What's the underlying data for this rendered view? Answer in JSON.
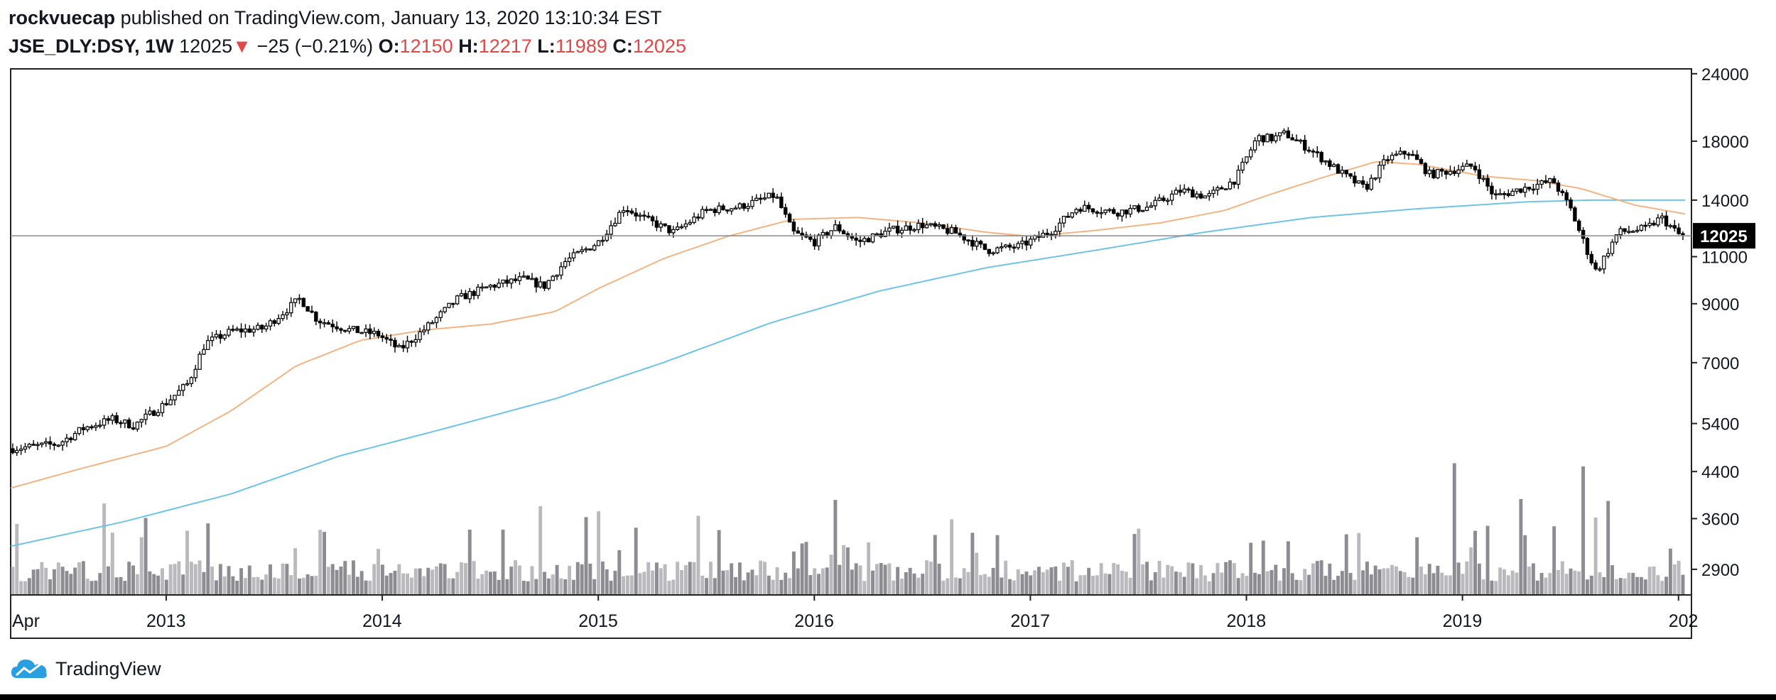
{
  "header": {
    "author": "rockvuecap",
    "published_text": "published on TradingView.com, January 13, 2020 13:10:34 EST",
    "symbol": "JSE_DLY:DSY, 1W",
    "last": "12025",
    "arrow": "▼",
    "change": "−25 (−0.21%)",
    "o_label": "O:",
    "o_value": "12150",
    "h_label": "H:",
    "h_value": "12217",
    "l_label": "L:",
    "l_value": "11989",
    "c_label": "C:",
    "c_value": "12025"
  },
  "logo": {
    "text": "TradingView",
    "icon": "tradingview-cloud-icon"
  },
  "colors": {
    "candle": "#000000",
    "ma_slow": "#6ec3e6",
    "ma_fast": "#f2b483",
    "volume_dark": "#8c8c92",
    "volume_light": "#b9b9be",
    "price_line": "#8a8a8a",
    "last_label_bg": "#000000",
    "down": "#e04848"
  },
  "chart_data": {
    "type": "candlestick",
    "timeframe": "1W",
    "y_scale": "log",
    "ylim": [
      2600,
      24500
    ],
    "x_range": [
      "2012-04",
      "2020-01"
    ],
    "y_ticks": [
      2900,
      3600,
      4400,
      5400,
      7000,
      9000,
      11000,
      14000,
      18000,
      24000
    ],
    "x_ticks": [
      "Apr",
      "2013",
      "2014",
      "2015",
      "2016",
      "2017",
      "2018",
      "2019",
      "202"
    ],
    "last_price_label": "12025",
    "price_anchors": [
      [
        2012.28,
        4850
      ],
      [
        2012.5,
        4950
      ],
      [
        2012.62,
        5300
      ],
      [
        2012.75,
        5500
      ],
      [
        2012.85,
        5350
      ],
      [
        2013.0,
        5900
      ],
      [
        2013.1,
        6400
      ],
      [
        2013.18,
        7600
      ],
      [
        2013.3,
        8000
      ],
      [
        2013.45,
        8100
      ],
      [
        2013.62,
        9200
      ],
      [
        2013.7,
        8400
      ],
      [
        2013.85,
        8050
      ],
      [
        2013.98,
        7900
      ],
      [
        2014.08,
        7400
      ],
      [
        2014.2,
        8100
      ],
      [
        2014.35,
        9200
      ],
      [
        2014.5,
        9700
      ],
      [
        2014.65,
        10000
      ],
      [
        2014.75,
        9700
      ],
      [
        2014.85,
        10800
      ],
      [
        2015.0,
        11700
      ],
      [
        2015.12,
        13600
      ],
      [
        2015.2,
        13000
      ],
      [
        2015.35,
        12200
      ],
      [
        2015.5,
        13400
      ],
      [
        2015.65,
        13600
      ],
      [
        2015.82,
        14300
      ],
      [
        2015.9,
        12200
      ],
      [
        2016.0,
        11700
      ],
      [
        2016.1,
        12500
      ],
      [
        2016.2,
        11700
      ],
      [
        2016.35,
        12300
      ],
      [
        2016.5,
        12600
      ],
      [
        2016.65,
        12200
      ],
      [
        2016.8,
        11300
      ],
      [
        2016.95,
        11500
      ],
      [
        2017.1,
        12300
      ],
      [
        2017.22,
        13600
      ],
      [
        2017.4,
        13300
      ],
      [
        2017.55,
        13600
      ],
      [
        2017.7,
        14600
      ],
      [
        2017.82,
        14200
      ],
      [
        2017.95,
        15300
      ],
      [
        2018.05,
        18300
      ],
      [
        2018.12,
        18200
      ],
      [
        2018.18,
        18600
      ],
      [
        2018.3,
        17300
      ],
      [
        2018.45,
        15600
      ],
      [
        2018.55,
        14700
      ],
      [
        2018.65,
        16700
      ],
      [
        2018.75,
        17200
      ],
      [
        2018.85,
        15600
      ],
      [
        2018.95,
        15900
      ],
      [
        2019.05,
        16200
      ],
      [
        2019.15,
        14200
      ],
      [
        2019.3,
        14800
      ],
      [
        2019.42,
        15200
      ],
      [
        2019.5,
        13500
      ],
      [
        2019.58,
        11200
      ],
      [
        2019.62,
        10300
      ],
      [
        2019.72,
        12200
      ],
      [
        2019.85,
        12400
      ],
      [
        2019.92,
        13000
      ],
      [
        2020.0,
        12100
      ],
      [
        2020.03,
        12025
      ]
    ],
    "ma_fast_anchors": [
      [
        2012.28,
        4100
      ],
      [
        2012.6,
        4450
      ],
      [
        2013.0,
        4900
      ],
      [
        2013.3,
        5700
      ],
      [
        2013.6,
        6900
      ],
      [
        2013.9,
        7700
      ],
      [
        2014.2,
        8050
      ],
      [
        2014.5,
        8250
      ],
      [
        2014.8,
        8700
      ],
      [
        2015.0,
        9600
      ],
      [
        2015.3,
        10900
      ],
      [
        2015.6,
        12000
      ],
      [
        2015.9,
        12900
      ],
      [
        2016.2,
        13000
      ],
      [
        2016.5,
        12700
      ],
      [
        2016.8,
        12200
      ],
      [
        2017.0,
        12000
      ],
      [
        2017.3,
        12300
      ],
      [
        2017.6,
        12700
      ],
      [
        2017.9,
        13400
      ],
      [
        2018.1,
        14300
      ],
      [
        2018.35,
        15400
      ],
      [
        2018.6,
        16500
      ],
      [
        2018.8,
        16300
      ],
      [
        2019.1,
        15500
      ],
      [
        2019.35,
        15200
      ],
      [
        2019.55,
        14700
      ],
      [
        2019.8,
        13700
      ],
      [
        2020.03,
        13200
      ]
    ],
    "ma_slow_anchors": [
      [
        2012.28,
        3200
      ],
      [
        2012.8,
        3550
      ],
      [
        2013.3,
        4000
      ],
      [
        2013.8,
        4700
      ],
      [
        2014.3,
        5300
      ],
      [
        2014.8,
        6000
      ],
      [
        2015.3,
        7000
      ],
      [
        2015.8,
        8300
      ],
      [
        2016.3,
        9500
      ],
      [
        2016.8,
        10500
      ],
      [
        2017.3,
        11300
      ],
      [
        2017.8,
        12200
      ],
      [
        2018.3,
        13000
      ],
      [
        2018.8,
        13500
      ],
      [
        2019.3,
        13900
      ],
      [
        2019.6,
        14000
      ],
      [
        2020.03,
        14000
      ]
    ],
    "volume_note": "volume histogram along bottom, peak near 2019.55"
  }
}
